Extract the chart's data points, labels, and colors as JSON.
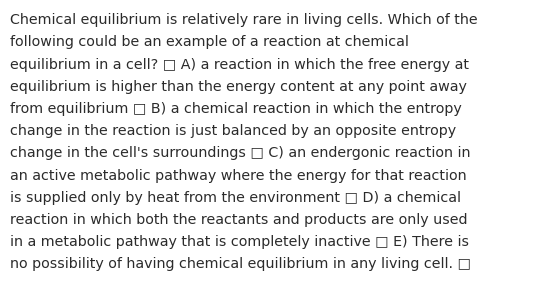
{
  "background_color": "#ffffff",
  "text_color": "#2b2b2b",
  "font_size": 10.3,
  "font_family": "DejaVu Sans",
  "lines": [
    "Chemical equilibrium is relatively rare in living cells. Which of the",
    "following could be an example of a reaction at chemical",
    "equilibrium in a cell? □ A) a reaction in which the free energy at",
    "equilibrium is higher than the energy content at any point away",
    "from equilibrium □ B) a chemical reaction in which the entropy",
    "change in the reaction is just balanced by an opposite entropy",
    "change in the cell's surroundings □ C) an endergonic reaction in",
    "an active metabolic pathway where the energy for that reaction",
    "is supplied only by heat from the environment □ D) a chemical",
    "reaction in which both the reactants and products are only used",
    "in a metabolic pathway that is completely inactive □ E) There is",
    "no possibility of having chemical equilibrium in any living cell. □"
  ],
  "fig_width": 5.58,
  "fig_height": 2.93,
  "dpi": 100
}
